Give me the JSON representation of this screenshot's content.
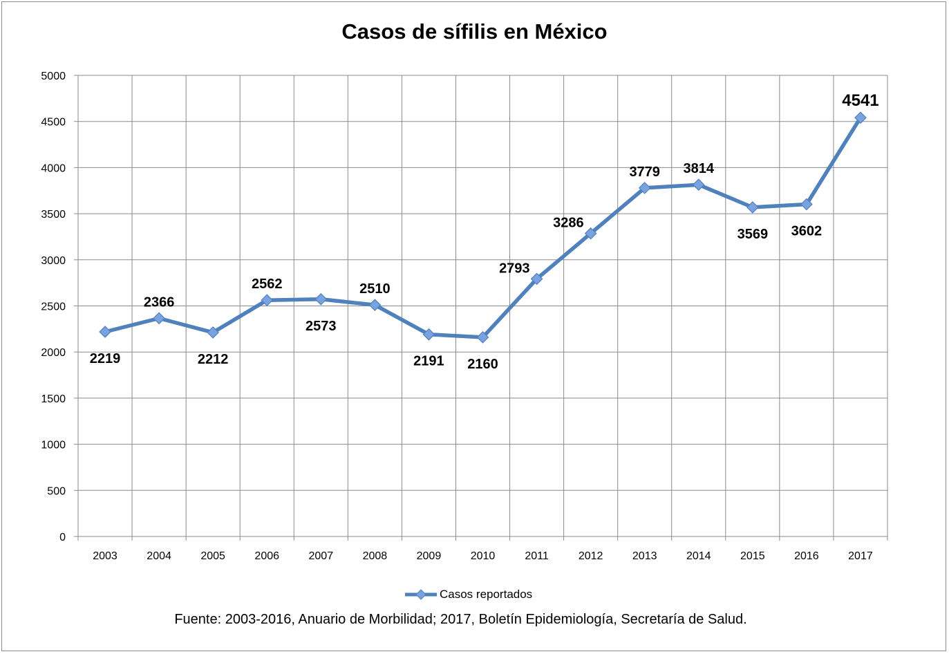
{
  "chart_data": {
    "type": "line",
    "title": "Casos de sífilis en México",
    "categories": [
      "2003",
      "2004",
      "2005",
      "2006",
      "2007",
      "2008",
      "2009",
      "2010",
      "2011",
      "2012",
      "2013",
      "2014",
      "2015",
      "2016",
      "2017"
    ],
    "series": [
      {
        "name": "Casos reportados",
        "values": [
          2219,
          2366,
          2212,
          2562,
          2573,
          2510,
          2191,
          2160,
          2793,
          3286,
          3779,
          3814,
          3569,
          3602,
          4541
        ],
        "color": "#4f81bd",
        "marker_color": "#7aa2e0"
      }
    ],
    "data_labels": [
      "2219",
      "2366",
      "2212",
      "2562",
      "2573",
      "2510",
      "2191",
      "2160",
      "2793",
      "3286",
      "3779",
      "3814",
      "3569",
      "3602",
      "4541"
    ],
    "label_placement": [
      "below",
      "above",
      "below",
      "above",
      "below",
      "above",
      "below",
      "below",
      "left",
      "left",
      "above",
      "above",
      "below",
      "below",
      "above"
    ],
    "ylim": [
      0,
      5000
    ],
    "yticks": [
      0,
      500,
      1000,
      1500,
      2000,
      2500,
      3000,
      3500,
      4000,
      4500,
      5000
    ],
    "ytick_labels": [
      "0",
      "500",
      "1000",
      "1500",
      "2000",
      "2500",
      "3000",
      "3500",
      "4000",
      "4500",
      "5000"
    ],
    "xlabel": "",
    "ylabel": "",
    "grid": true,
    "legend_position": "bottom"
  },
  "legend": {
    "label": "Casos reportados"
  },
  "source_note": "Fuente: 2003-2016, Anuario de Morbilidad; 2017, Boletín Epidemiología, Secretaría de Salud."
}
